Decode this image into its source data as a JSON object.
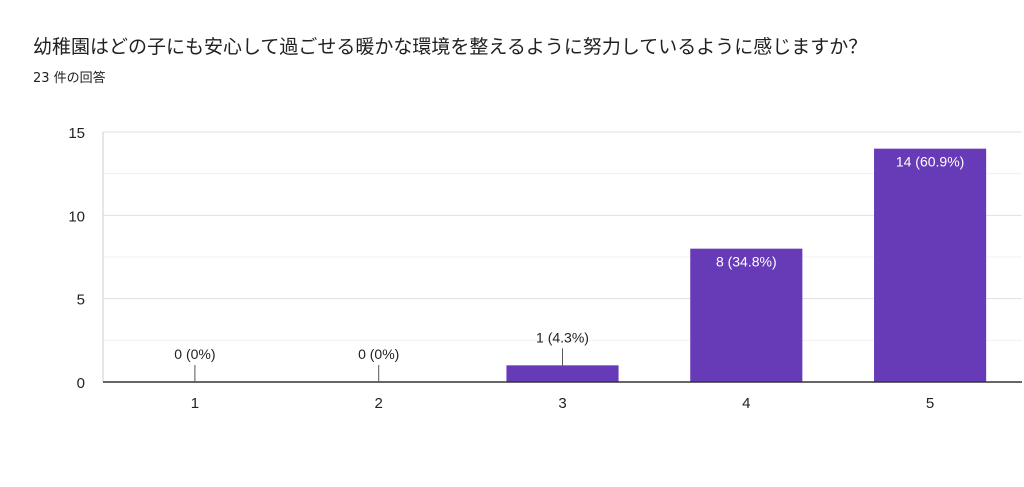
{
  "question": {
    "title": "幼稚園はどの子にも安心して過ごせる暖かな環境を整えるように努力しているように感じますか？",
    "response_count": "23 件の回答"
  },
  "colors": {
    "bar": "#673ab7",
    "grid": "#e8e8e8",
    "axis": "#333333",
    "text": "#222222",
    "bar_label": "#ffffff"
  },
  "chart_data": {
    "type": "bar",
    "categories": [
      "1",
      "2",
      "3",
      "4",
      "5"
    ],
    "values": [
      0,
      0,
      1,
      8,
      14
    ],
    "data_labels": [
      "0 (0%)",
      "0 (0%)",
      "1 (4.3%)",
      "8 (34.8%)",
      "14 (60.9%)"
    ],
    "yticks": [
      0,
      5,
      10,
      15
    ],
    "ylim": [
      0,
      15
    ],
    "title": "",
    "xlabel": "",
    "ylabel": "",
    "grid": true,
    "legend": "none"
  }
}
